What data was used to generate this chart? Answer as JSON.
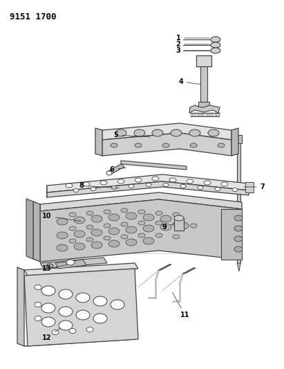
{
  "title": "9151 1700",
  "bg_color": "#ffffff",
  "lc": "#404040",
  "title_fontsize": 9,
  "label_fontsize": 7,
  "fig_width": 4.11,
  "fig_height": 5.33,
  "dpi": 100
}
